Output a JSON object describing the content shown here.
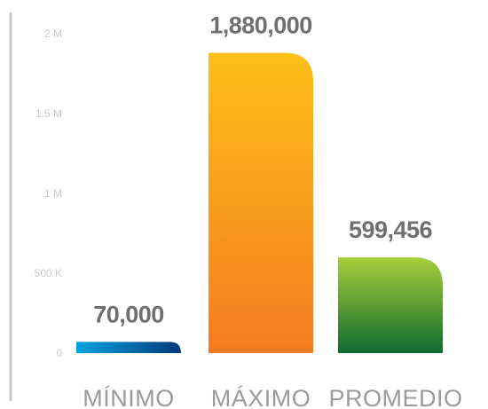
{
  "chart_data": {
    "type": "bar",
    "title": "",
    "xlabel": "",
    "ylabel": "",
    "categories": [
      "MÍNIMO",
      "MÁXIMO",
      "PROMEDIO"
    ],
    "values": [
      70000,
      1880000,
      599456
    ],
    "data_labels": [
      "70,000",
      "1,880,000",
      "599,456"
    ],
    "ylim": [
      0,
      2000000
    ],
    "yticks": [
      {
        "value": 0,
        "label": "0"
      },
      {
        "value": 500000,
        "label": "500 K"
      },
      {
        "value": 1000000,
        "label": "1 M"
      },
      {
        "value": 1500000,
        "label": "1.5 M"
      },
      {
        "value": 2000000,
        "label": "2 M"
      }
    ],
    "grid": false,
    "legend": "none",
    "colors": [
      {
        "top": "#00a3e0",
        "bottom": "#003a7a",
        "direction": "horizontal"
      },
      {
        "top": "#fdbf18",
        "bottom": "#f47b20",
        "direction": "vertical"
      },
      {
        "top": "#a8cf3a",
        "bottom": "#0f6a2f",
        "direction": "vertical"
      }
    ],
    "axis_color": "#c8c8c8"
  }
}
